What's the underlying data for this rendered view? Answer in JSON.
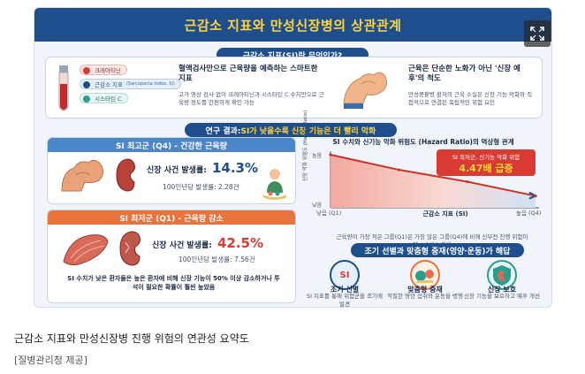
{
  "infographic": {
    "title": "근감소 지표와 만성신장병의 상관관계",
    "section1_label": "근감소 지표(SI)란 무엇인가?",
    "tube_labels": [
      "크레아티닌",
      "근감소 지표",
      "시스타틴 C"
    ],
    "tube_sub_label": "(Sarcopenia Index, SI)",
    "blood_title": "혈액검사만으로 근육량을 예측하는 스마트한 지표",
    "blood_desc": "고가 영상 검사 없이 크레아티닌과 시스타틴 C 수치만으로 근육량 정도를 간편하게 확인 가능",
    "muscle_title": "근육은 단순한 노화가 아닌 '신장 예후'의 척도",
    "muscle_desc": "만성콩팥병 환자의 근육 소실은 신장 기능 악화와 직접적으로 연결된 독립적인 위험 요인",
    "section2_label_prefix": "연구 결과: ",
    "section2_label_highlight": "SI가 낮을수록 신장 기능은 더 빨리 악화",
    "q4_head": "SI 최고군 (Q4) - 건강한 근육량",
    "q4_event_label": "신장 사건 발생률:",
    "q4_event_value": "14.3%",
    "q4_sub": "100인년당 발생률: 2.28건",
    "q1_head": "SI 최저군 (Q1) - 근육량 감소",
    "q1_event_label": "신장 사건 발생률:",
    "q1_event_value": "42.5%",
    "q1_sub": "100인년당 발생률: 7.56건",
    "q1_note": "SI 수치가 낮은 환자들은 높은 환자에 비해 신장 기능이 50% 이상 감소하거나 투석이 필요한 확률이 훨씬 높았음",
    "chart_title": "SI 수치와 신기능 악화 위험도 (Hazard Ratio)의 역상형 관계",
    "chart_callout": "SI 최저군, 신기능 악화 위험",
    "chart_callout_value": "4.47배 급증",
    "chart_note": "근육량이 가장 적은 그룹(Q1)은 가장 많은 그룹(Q4)에 비해 신부전 진행 위험이 약 4.5배 높았음",
    "section3_label": "조기 선별과 맞춤형 중재(영양·운동)가 해답",
    "bottom_items": [
      {
        "title": "조기 선별",
        "desc": "SI 지표를 통해 위험군을 조기에 발견"
      },
      {
        "title": "맞춤형 중재",
        "desc": "적절한 영양 섭취와 운동을 병행"
      },
      {
        "title": "신장 보호",
        "desc": "신장 기능을 보호하고 예후 개선"
      }
    ],
    "bubble_text": "SI"
  },
  "chart_data": {
    "type": "area",
    "title": "SI 수치와 신기능 악화 위험도 (Hazard Ratio)의 역상형 관계",
    "xlabel": "근감소 지표 (SI)",
    "ylabel": "신장 악화 위험도 (Hazard Ratio)",
    "x_tick_labels": [
      "낮음 (Q1)",
      "높음 (Q4)"
    ],
    "y_tick_labels": [
      "높음",
      "낮음"
    ],
    "x": [
      1,
      2,
      3,
      4
    ],
    "y": [
      4.47,
      3.2,
      2.2,
      1.0
    ]
  },
  "caption": "근감소 지표와 만성신장병 진행 위험의 연관성 요약도",
  "source": "[질병관리청 제공]",
  "colors": {
    "navy": "#1f4e8c",
    "yellow": "#ffd43b",
    "blue_head": "#4a86c8",
    "orange_head": "#e8743b",
    "red": "#d93a32"
  }
}
